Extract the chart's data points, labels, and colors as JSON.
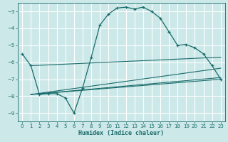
{
  "xlabel": "Humidex (Indice chaleur)",
  "ylabel": "",
  "bg_color": "#cce8e8",
  "grid_color": "#b0d8d8",
  "line_color": "#1a6b6b",
  "xlim": [
    -0.5,
    23.5
  ],
  "ylim": [
    -9.5,
    -2.5
  ],
  "yticks": [
    -9,
    -8,
    -7,
    -6,
    -5,
    -4,
    -3
  ],
  "xticks": [
    0,
    1,
    2,
    3,
    4,
    5,
    6,
    7,
    8,
    9,
    10,
    11,
    12,
    13,
    14,
    15,
    16,
    17,
    18,
    19,
    20,
    21,
    22,
    23
  ],
  "curve1_x": [
    0,
    1,
    2,
    3,
    4,
    5,
    6,
    7,
    8,
    9,
    10,
    11,
    12,
    13,
    14,
    15,
    16,
    17,
    18,
    19,
    20,
    21,
    22,
    23
  ],
  "curve1_y": [
    -5.5,
    -6.2,
    -7.9,
    -7.85,
    -7.85,
    -8.1,
    -9.0,
    -7.5,
    -5.7,
    -3.8,
    -3.15,
    -2.8,
    -2.75,
    -2.85,
    -2.75,
    -3.0,
    -3.4,
    -4.2,
    -5.0,
    -4.95,
    -5.15,
    -5.5,
    -6.2,
    -7.0
  ],
  "line1_x": [
    1,
    23
  ],
  "line1_y": [
    -6.2,
    -5.7
  ],
  "line2_x": [
    1,
    23
  ],
  "line2_y": [
    -7.9,
    -6.35
  ],
  "line3_x": [
    1,
    23
  ],
  "line3_y": [
    -7.9,
    -7.0
  ],
  "line4_x": [
    1,
    23
  ],
  "line4_y": [
    -7.9,
    -6.9
  ]
}
